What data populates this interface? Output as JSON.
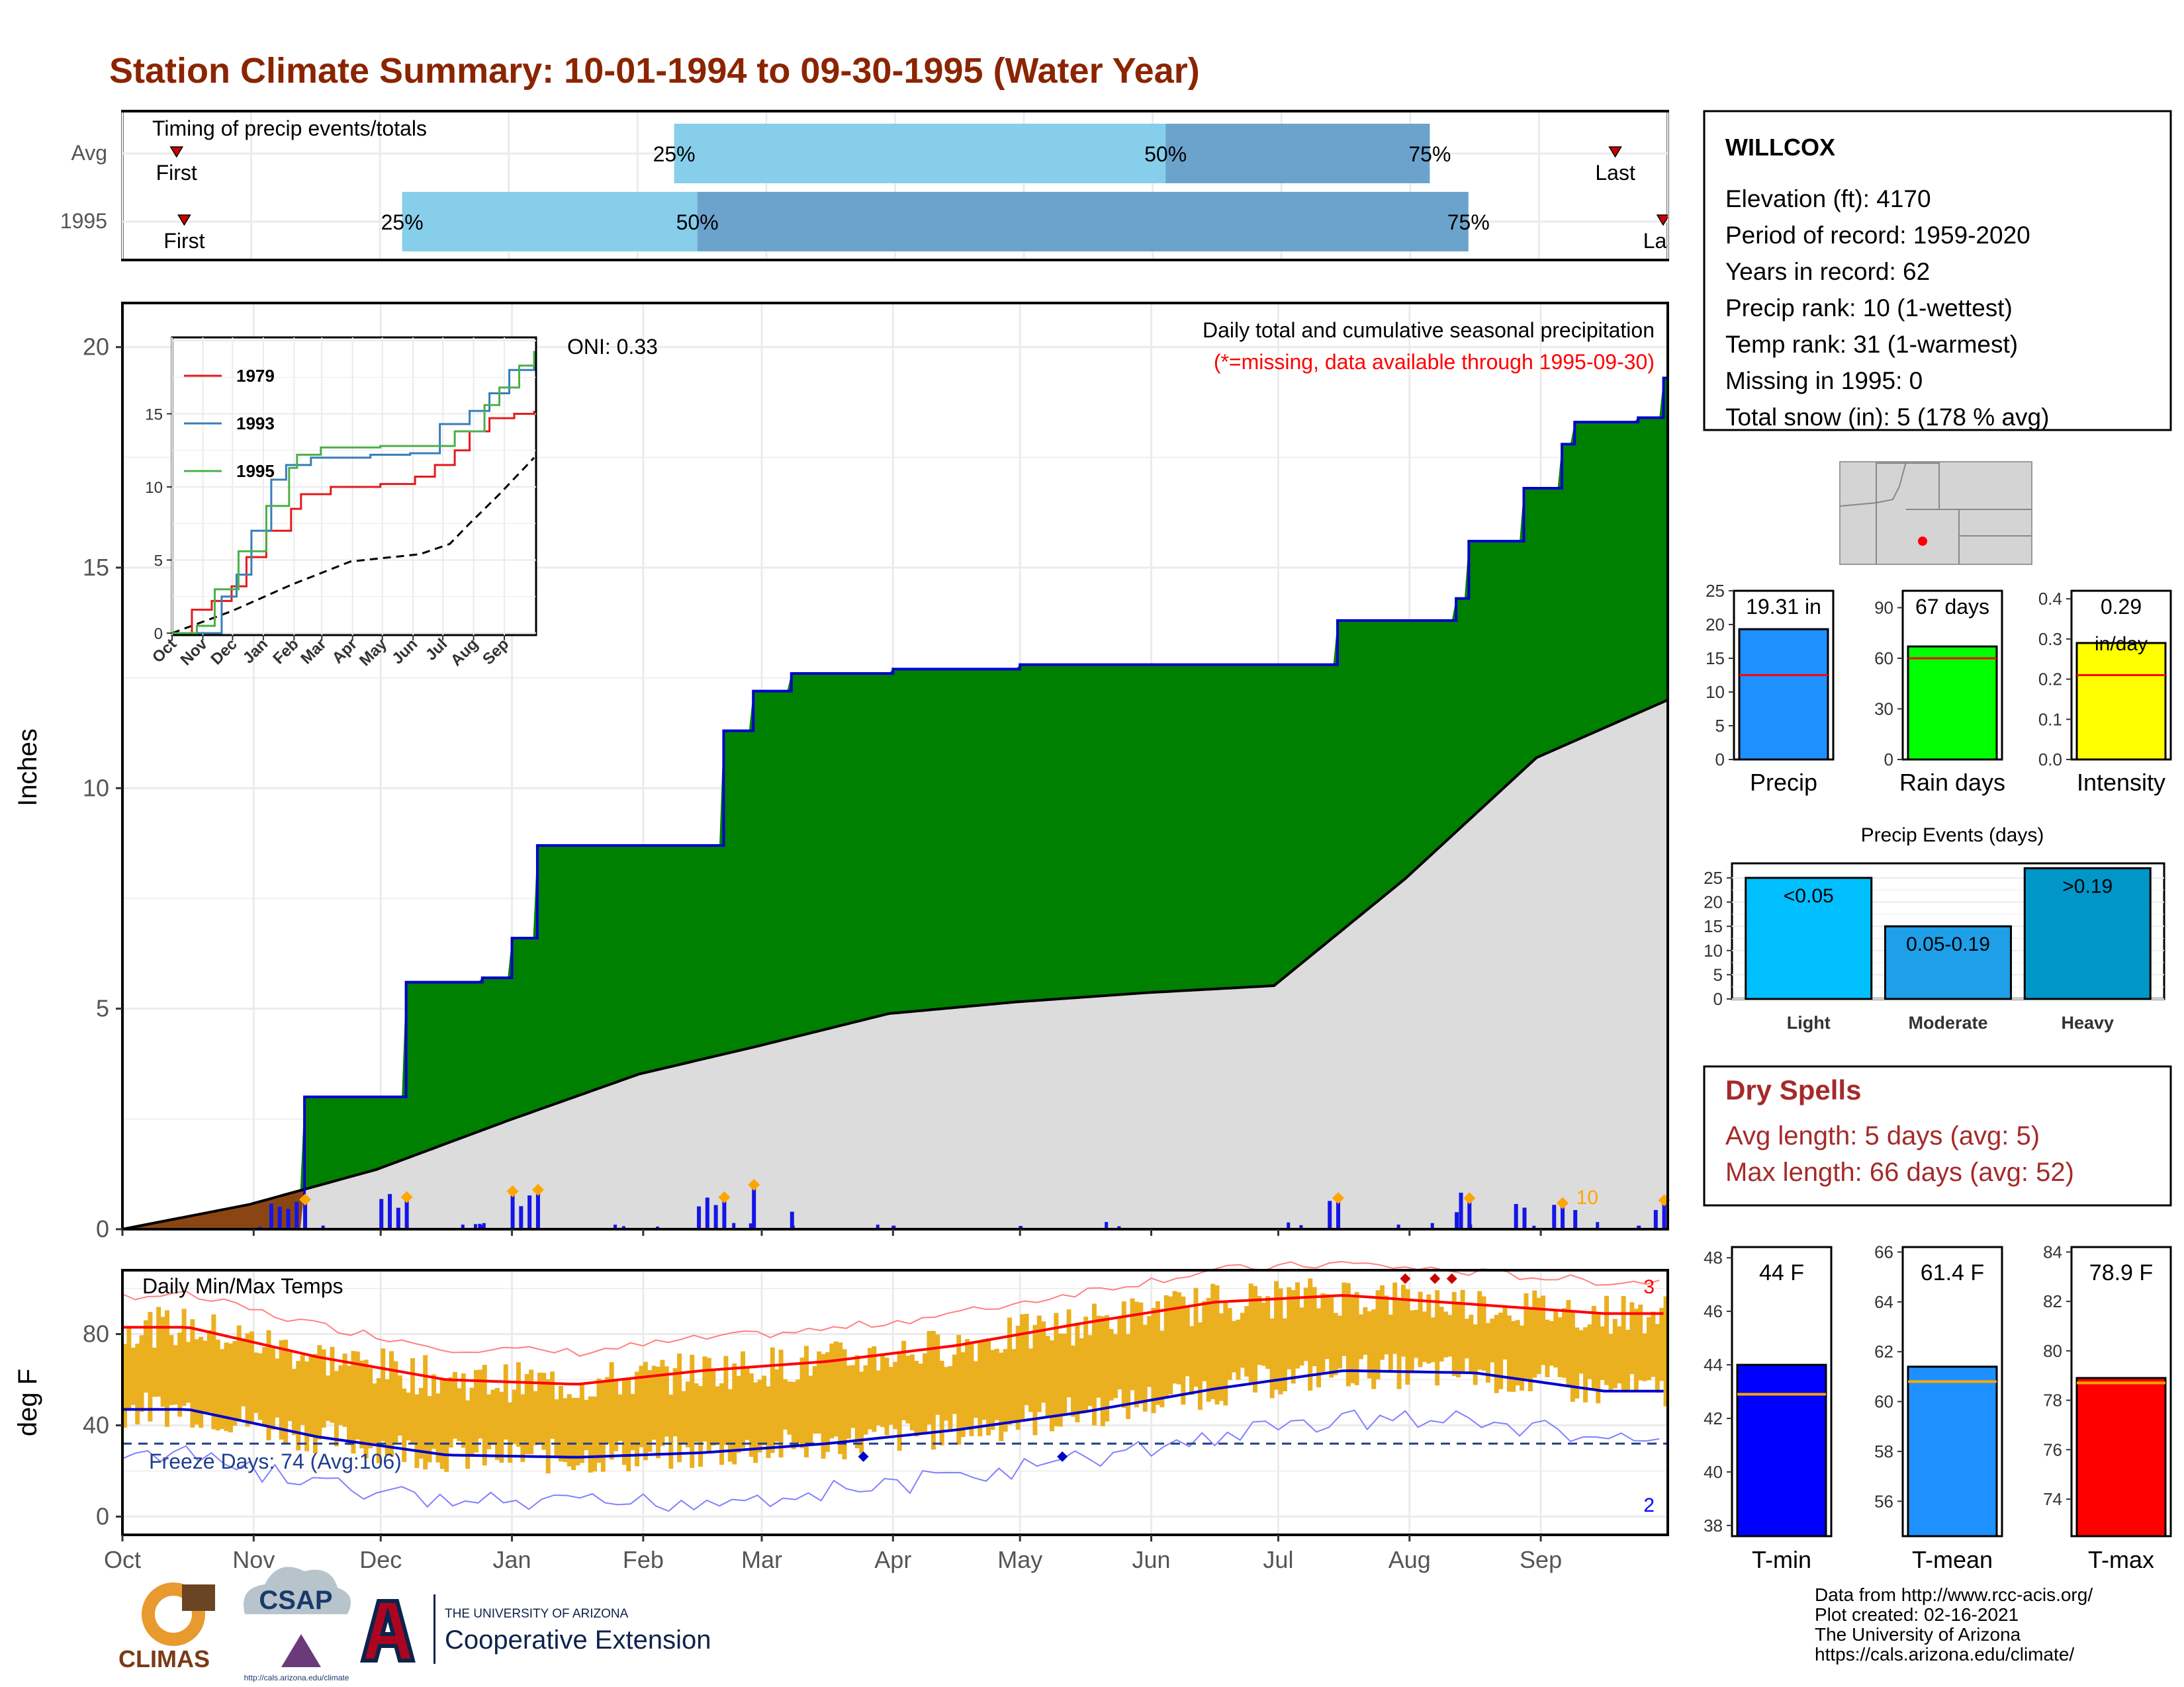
{
  "title": "Station Climate Summary: 10-01-1994 to 09-30-1995 (Water Year)",
  "colors": {
    "title": "#8B2500",
    "green": "#008000",
    "cum_line": "#0000CC",
    "avg_fill": "#DCDCDC",
    "dry": "#8B4513",
    "bar_blue": "#1515E8",
    "orange": "#FFA500",
    "light_blue": "#87CEEB",
    "mid_blue": "#6BA3CC",
    "red": "#FF0000",
    "gold": "#EBB020",
    "dry_red": "#A52A2A"
  },
  "timing": {
    "label": "Timing of precip events/totals",
    "rows": [
      {
        "name": "Avg",
        "first_label": "First",
        "last_label": "Last",
        "first_frac": 0.035,
        "last_frac": 0.966,
        "p25": 0.357,
        "p50": 0.675,
        "p75": 0.846
      },
      {
        "name": "1995",
        "first_label": "First",
        "last_label": "Last",
        "first_frac": 0.04,
        "last_frac": 0.997,
        "p25": 0.181,
        "p50": 0.372,
        "p75": 0.871
      }
    ],
    "pct_labels": [
      "25%",
      "50%",
      "75%"
    ]
  },
  "main": {
    "ylabel": "Inches",
    "title": "Daily total and cumulative seasonal precipitation",
    "subtitle": "(*=missing, data available through 1995-09-30)",
    "oni": "ONI: 0.33",
    "corner_label": "10",
    "yticks": [
      "0",
      "5",
      "10",
      "15",
      "20"
    ],
    "months": [
      "Oct",
      "Nov",
      "Dec",
      "Jan",
      "Feb",
      "Mar",
      "Apr",
      "May",
      "Jun",
      "Jul",
      "Aug",
      "Sep"
    ]
  },
  "inset": {
    "yticks": [
      "0",
      "5",
      "10",
      "15"
    ],
    "months": [
      "Oct",
      "Nov",
      "Dec",
      "Jan",
      "Feb",
      "Mar",
      "Apr",
      "May",
      "Jun",
      "Jul",
      "Aug",
      "Sep"
    ],
    "legend": [
      {
        "name": "1979",
        "color": "#E41A1C"
      },
      {
        "name": "1993",
        "color": "#377EB8"
      },
      {
        "name": "1995",
        "color": "#4DAF4A"
      }
    ]
  },
  "temps": {
    "label": "Daily Min/Max Temps",
    "ylabel": "deg F",
    "yticks": [
      "0",
      "40",
      "80"
    ],
    "freeze": "Freeze Days: 74 (Avg:106)",
    "max_count": "3",
    "min_count": "2",
    "months": [
      "Oct",
      "Nov",
      "Dec",
      "Jan",
      "Feb",
      "Mar",
      "Apr",
      "May",
      "Jun",
      "Jul",
      "Aug",
      "Sep"
    ]
  },
  "station": {
    "name": "WILLCOX",
    "lines": [
      "Elevation (ft): 4170",
      "Period of record: 1959-2020",
      "Years in record: 62",
      "Precip rank: 10 (1-wettest)",
      "Temp rank: 31 (1-warmest)",
      "Missing in 1995: 0",
      "Total snow (in): 5 (178 % avg)"
    ]
  },
  "mini_bars": [
    {
      "label": "Precip",
      "value_text": "19.31 in",
      "value": 19.31,
      "avg": 12.5,
      "max": 25,
      "ticks": [
        "0",
        "5",
        "10",
        "15",
        "20",
        "25"
      ],
      "color": "#1E90FF"
    },
    {
      "label": "Rain days",
      "value_text": "67 days",
      "value": 67,
      "avg": 60,
      "max": 100,
      "ticks": [
        "0",
        "30",
        "60",
        "90"
      ],
      "color": "#00FF00"
    },
    {
      "label": "Intensity",
      "value_text": "0.29",
      "value_text2": "in/day",
      "value": 0.29,
      "avg": 0.21,
      "max": 0.42,
      "ticks": [
        "0.0",
        "0.1",
        "0.2",
        "0.3",
        "0.4"
      ],
      "color": "#FFFF00"
    }
  ],
  "events": {
    "title": "Precip Events (days)",
    "bars": [
      {
        "label": "Light",
        "value": 25,
        "text": "<0.05",
        "color": "#00BFFF"
      },
      {
        "label": "Moderate",
        "value": 15,
        "text": "0.05-0.19",
        "color": "#1E9FE8"
      },
      {
        "label": "Heavy",
        "value": 27,
        "text": ">0.19",
        "color": "#0096C8"
      }
    ],
    "ticks": [
      "0",
      "5",
      "10",
      "15",
      "20",
      "25"
    ]
  },
  "dry_spells": {
    "title": "Dry Spells",
    "lines": [
      "Avg length: 5 days (avg: 5)",
      "Max length: 66 days (avg: 52)"
    ]
  },
  "temp_bars": [
    {
      "label": "T-min",
      "value_text": "44 F",
      "value": 44,
      "avg": 42.9,
      "min": 37.6,
      "max": 48.4,
      "ticks": [
        "38",
        "40",
        "42",
        "44",
        "46",
        "48"
      ],
      "color": "#0000FF"
    },
    {
      "label": "T-mean",
      "value_text": "61.4 F",
      "value": 61.4,
      "avg": 60.8,
      "min": 54.6,
      "max": 66.2,
      "ticks": [
        "56",
        "58",
        "60",
        "62",
        "64",
        "66"
      ],
      "color": "#1E90FF"
    },
    {
      "label": "T-max",
      "value_text": "78.9 F",
      "value": 78.9,
      "avg": 78.7,
      "min": 72.5,
      "max": 84.2,
      "ticks": [
        "74",
        "76",
        "78",
        "80",
        "82",
        "84"
      ],
      "color": "#FF0000"
    }
  ],
  "footer": [
    "Data from http://www.rcc-acis.org/",
    "Plot created: 02-16-2021",
    "The University of Arizona",
    "https://cals.arizona.edu/climate/"
  ],
  "logos": {
    "climas": "CLIMAS",
    "csap": "CSAP",
    "csap_url": "http://cals.arizona.edu/climate",
    "ua_small": "THE UNIVERSITY OF ARIZONA",
    "ua_big": "Cooperative Extension"
  },
  "chart_data": [
    {
      "type": "area",
      "title": "Daily total and cumulative seasonal precipitation",
      "xlabel": "",
      "ylabel": "Inches",
      "ylim": [
        0,
        21
      ],
      "x": [
        "Oct 1",
        "Nov 13",
        "Dec 7",
        "Dec 25",
        "Jan 1",
        "Jan 7",
        "Feb 20",
        "Feb 27",
        "Mar 8",
        "Apr 1",
        "May 1",
        "Jul 15",
        "Aug 12",
        "Aug 15",
        "Aug 28",
        "Sep 6",
        "Sep 9",
        "Sep 24",
        "Sep 30"
      ],
      "series": [
        {
          "name": "1995",
          "values": [
            0,
            3.0,
            5.6,
            5.7,
            6.6,
            8.7,
            11.3,
            12.2,
            12.6,
            12.7,
            12.8,
            13.8,
            14.3,
            15.6,
            16.8,
            17.8,
            18.3,
            18.4,
            19.3
          ]
        }
      ],
      "avg_cumulative_end": 12.0,
      "daily_max": 1.5
    },
    {
      "type": "line",
      "title": "",
      "ylim": [
        0,
        20
      ],
      "series": [
        {
          "name": "1979",
          "end_value": 15.2
        },
        {
          "name": "1993",
          "end_value": 18.8
        },
        {
          "name": "1995",
          "end_value": 19.3
        }
      ]
    },
    {
      "type": "bar",
      "title": "Daily Min/Max Temps",
      "ylabel": "deg F",
      "ylim": [
        -8,
        108
      ],
      "categories": [
        "Oct",
        "Nov",
        "Dec",
        "Jan",
        "Feb",
        "Mar",
        "Apr",
        "May",
        "Jun",
        "Jul",
        "Aug",
        "Sep"
      ],
      "series": [
        {
          "name": "Avg max",
          "values": [
            83,
            70,
            60,
            58,
            64,
            68,
            75,
            85,
            94,
            97,
            93,
            89
          ]
        },
        {
          "name": "Avg min",
          "values": [
            47,
            35,
            27,
            26,
            28,
            32,
            38,
            46,
            56,
            64,
            63,
            55
          ]
        }
      ]
    }
  ]
}
